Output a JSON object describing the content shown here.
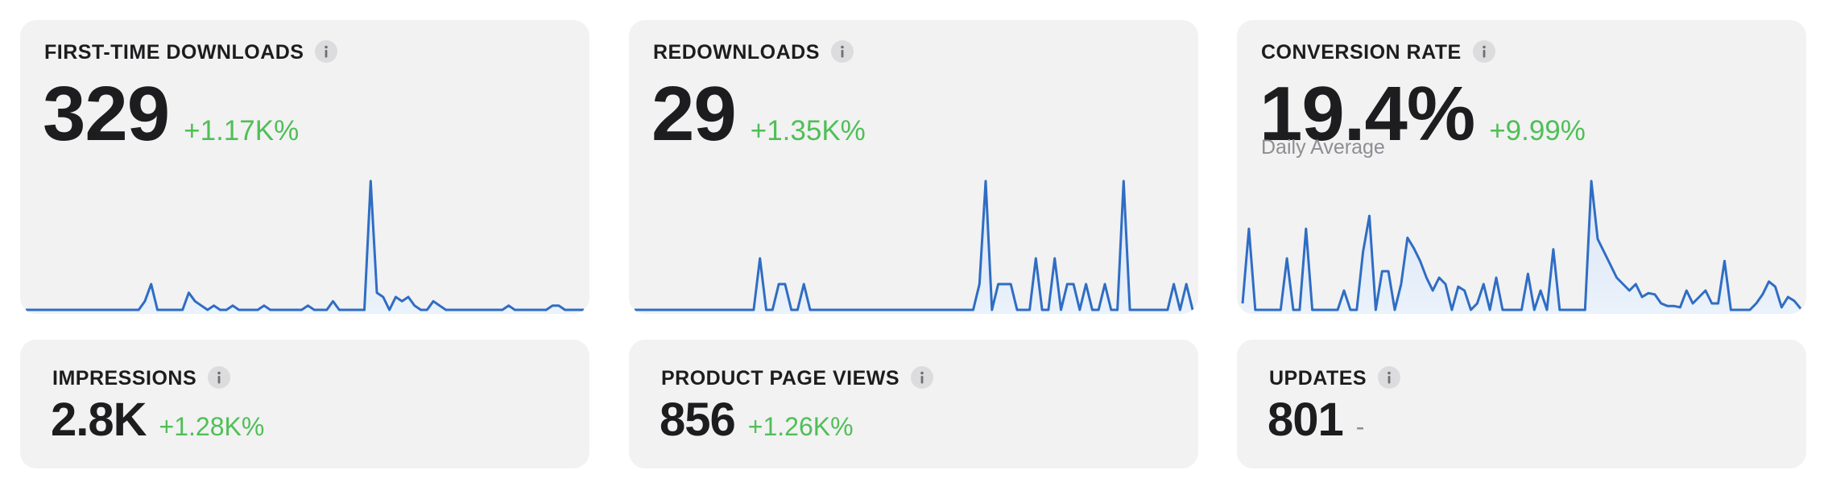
{
  "cards": [
    {
      "title": "FIRST-TIME DOWNLOADS",
      "value": "329",
      "change": "+1.17K%",
      "sparkline": [
        0,
        0,
        0,
        0,
        0,
        0,
        0,
        0,
        0,
        0,
        0,
        0,
        0,
        0,
        0,
        0,
        0,
        0,
        0,
        2,
        6,
        0,
        0,
        0,
        0,
        0,
        4,
        2,
        1,
        0,
        1,
        0,
        0,
        1,
        0,
        0,
        0,
        0,
        1,
        0,
        0,
        0,
        0,
        0,
        0,
        1,
        0,
        0,
        0,
        2,
        0,
        0,
        0,
        0,
        0,
        30,
        4,
        3,
        0,
        3,
        2,
        3,
        1,
        0,
        0,
        2,
        1,
        0,
        0,
        0,
        0,
        0,
        0,
        0,
        0,
        0,
        0,
        1,
        0,
        0,
        0,
        0,
        0,
        0,
        1,
        1,
        0,
        0,
        0,
        0
      ]
    },
    {
      "title": "REDOWNLOADS",
      "value": "29",
      "change": "+1.35K%",
      "sparkline": [
        0,
        0,
        0,
        0,
        0,
        0,
        0,
        0,
        0,
        0,
        0,
        0,
        0,
        0,
        0,
        0,
        0,
        0,
        0,
        0,
        2,
        0,
        0,
        1,
        1,
        0,
        0,
        1,
        0,
        0,
        0,
        0,
        0,
        0,
        0,
        0,
        0,
        0,
        0,
        0,
        0,
        0,
        0,
        0,
        0,
        0,
        0,
        0,
        0,
        0,
        0,
        0,
        0,
        0,
        0,
        1,
        5,
        0,
        1,
        1,
        1,
        0,
        0,
        0,
        2,
        0,
        0,
        2,
        0,
        1,
        1,
        0,
        1,
        0,
        0,
        1,
        0,
        0,
        5,
        0,
        0,
        0,
        0,
        0,
        0,
        0,
        1,
        0,
        1,
        0
      ]
    },
    {
      "title": "CONVERSION RATE",
      "value": "19.4%",
      "change": "+9.99%",
      "subtitle": "Daily Average",
      "sparkline": [
        5,
        63,
        0,
        0,
        0,
        0,
        0,
        40,
        0,
        0,
        63,
        0,
        0,
        0,
        0,
        0,
        15,
        0,
        0,
        45,
        73,
        0,
        30,
        30,
        0,
        20,
        56,
        48,
        38,
        25,
        15,
        25,
        20,
        0,
        18,
        15,
        0,
        5,
        20,
        0,
        25,
        0,
        0,
        0,
        0,
        28,
        0,
        15,
        0,
        47,
        0,
        0,
        0,
        0,
        0,
        100,
        55,
        45,
        35,
        25,
        20,
        15,
        20,
        10,
        13,
        12,
        5,
        3,
        3,
        2,
        15,
        5,
        10,
        15,
        5,
        5,
        38,
        0,
        0,
        0,
        0,
        5,
        12,
        22,
        18,
        2,
        10,
        7,
        1
      ]
    },
    {
      "title": "IMPRESSIONS",
      "value": "2.8K",
      "change": "+1.28K%"
    },
    {
      "title": "PRODUCT PAGE VIEWS",
      "value": "856",
      "change": "+1.26K%"
    },
    {
      "title": "UPDATES",
      "value": "801",
      "change": "-"
    }
  ]
}
